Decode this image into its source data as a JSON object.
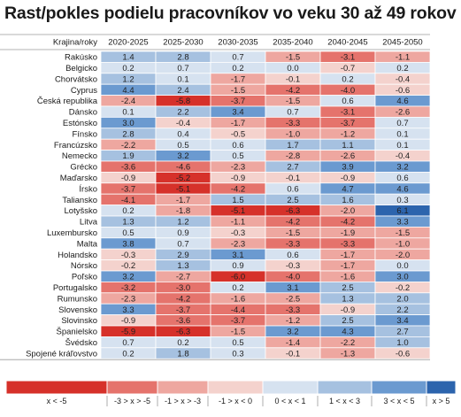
{
  "chart_data": {
    "type": "heatmap",
    "title": "Rast/pokles podielu pracovníkov vo veku 30 až 49 rokov",
    "row_header": "Krajina/roky",
    "columns": [
      "2020-2025",
      "2025-2030",
      "2030-2035",
      "2035-2040",
      "2040-2045",
      "2045-2050"
    ],
    "rows": [
      {
        "name": "Rakúsko",
        "values": [
          "1.4",
          "2.8",
          "0.7",
          "-1.5",
          "-3.1",
          "-1.1"
        ]
      },
      {
        "name": "Belgicko",
        "values": [
          "0.2",
          "0.7",
          "0.2",
          "0.0",
          "-0.7",
          "0.2"
        ]
      },
      {
        "name": "Chorvátsko",
        "values": [
          "1.2",
          "0.1",
          "-1.7",
          "-0.1",
          "0.2",
          "-0.4"
        ]
      },
      {
        "name": "Cyprus",
        "values": [
          "4.4",
          "2.4",
          "-1.5",
          "-4.2",
          "-4.0",
          "-0.6"
        ]
      },
      {
        "name": "Česká republika",
        "values": [
          "-2.4",
          "-5.8",
          "-3.7",
          "-1.5",
          "0.6",
          "4.6"
        ]
      },
      {
        "name": "Dánsko",
        "values": [
          "0.1",
          "2.2",
          "3.4",
          "0.7",
          "-3.1",
          "-2.6"
        ]
      },
      {
        "name": "Estónsko",
        "values": [
          "3.0",
          "-0.4",
          "-1.7",
          "-3.3",
          "-3.7",
          "0.7"
        ]
      },
      {
        "name": "Fínsko",
        "values": [
          "2.8",
          "0.4",
          "-0.5",
          "-1.0",
          "-1.2",
          "0.1"
        ]
      },
      {
        "name": "Francúzsko",
        "values": [
          "-2.2",
          "0.5",
          "0.6",
          "1.7",
          "1.1",
          "0.1"
        ]
      },
      {
        "name": "Nemecko",
        "values": [
          "1.9",
          "3.2",
          "0.5",
          "-2.8",
          "-2.6",
          "-0.4"
        ]
      },
      {
        "name": "Grécko",
        "values": [
          "-3.6",
          "-4.6",
          "-2.3",
          "2.7",
          "3.9",
          "3.2"
        ]
      },
      {
        "name": "Maďarsko",
        "values": [
          "-0.9",
          "-5.2",
          "-0.9",
          "-0.1",
          "-0.9",
          "0.6"
        ]
      },
      {
        "name": "Írsko",
        "values": [
          "-3.7",
          "-5.1",
          "-4.2",
          "0.6",
          "4.7",
          "4.6"
        ]
      },
      {
        "name": "Taliansko",
        "values": [
          "-4.1",
          "-1.7",
          "1.5",
          "2.5",
          "1.6",
          "0.3"
        ]
      },
      {
        "name": "Lotyšsko",
        "values": [
          "0.2",
          "-1.8",
          "-5.1",
          "-6.3",
          "-2.0",
          "6.1"
        ]
      },
      {
        "name": "Litva",
        "values": [
          "1.3",
          "1.2",
          "-1.1",
          "-4.2",
          "-4.2",
          "3.3"
        ]
      },
      {
        "name": "Luxembursko",
        "values": [
          "0.5",
          "0.9",
          "-0.3",
          "-1.5",
          "-1.9",
          "-1.5"
        ]
      },
      {
        "name": "Malta",
        "values": [
          "3.8",
          "0.7",
          "-2.3",
          "-3.3",
          "-3.3",
          "-1.0"
        ]
      },
      {
        "name": "Holandsko",
        "values": [
          "-0.3",
          "2.9",
          "3.1",
          "0.6",
          "-1.7",
          "-2.0"
        ]
      },
      {
        "name": "Nórsko",
        "values": [
          "-0.2",
          "1.3",
          "0.9",
          "-0.3",
          "-1.7",
          "0.0"
        ]
      },
      {
        "name": "Poľsko",
        "values": [
          "3.2",
          "-2.7",
          "-6.0",
          "-4.0",
          "-1.6",
          "3.0"
        ]
      },
      {
        "name": "Portugalsko",
        "values": [
          "-3.2",
          "-3.0",
          "0.2",
          "3.1",
          "2.5",
          "-0.2"
        ]
      },
      {
        "name": "Rumunsko",
        "values": [
          "-2.3",
          "-4.2",
          "-1.6",
          "-2.5",
          "1.3",
          "2.0"
        ]
      },
      {
        "name": "Slovensko",
        "values": [
          "3.3",
          "-3.7",
          "-4.4",
          "-3.3",
          "-0.9",
          "2.2"
        ]
      },
      {
        "name": "Slovinsko",
        "values": [
          "-0.9",
          "-3.6",
          "-3.7",
          "-1.2",
          "2.5",
          "3.4"
        ]
      },
      {
        "name": "Španielsko",
        "values": [
          "-5.9",
          "-6.3",
          "-1.5",
          "3.2",
          "4.3",
          "2.7"
        ]
      },
      {
        "name": "Švédsko",
        "values": [
          "0.7",
          "0.2",
          "0.5",
          "-1.4",
          "-2.2",
          "1.0"
        ]
      },
      {
        "name": "Spojené kráľovstvo",
        "values": [
          "0.2",
          "1.8",
          "0.3",
          "-0.1",
          "-1.3",
          "-0.6"
        ]
      }
    ],
    "legend": [
      {
        "label": "x < -5",
        "color": "#d6312a"
      },
      {
        "label": "-3 > x > -5",
        "color": "#e5736c"
      },
      {
        "label": "-1 > x > -3",
        "color": "#eea7a0"
      },
      {
        "label": "-1 > x < 0",
        "color": "#f4d2cd"
      },
      {
        "label": "0 < x < 1",
        "color": "#d6e2f0"
      },
      {
        "label": "1 < x < 3",
        "color": "#a6c1e0"
      },
      {
        "label": "3 < x < 5",
        "color": "#6b9ad0"
      },
      {
        "label": "x > 5",
        "color": "#2c64ad"
      }
    ],
    "colors": {
      "cell_text": "#1f1f1f",
      "row_label_text": "#1a1a1a",
      "header_text": "#1a1a1a",
      "grid_line": "#ffffff",
      "separator": "#9a9a9a",
      "title": "#1a1a1a"
    }
  }
}
